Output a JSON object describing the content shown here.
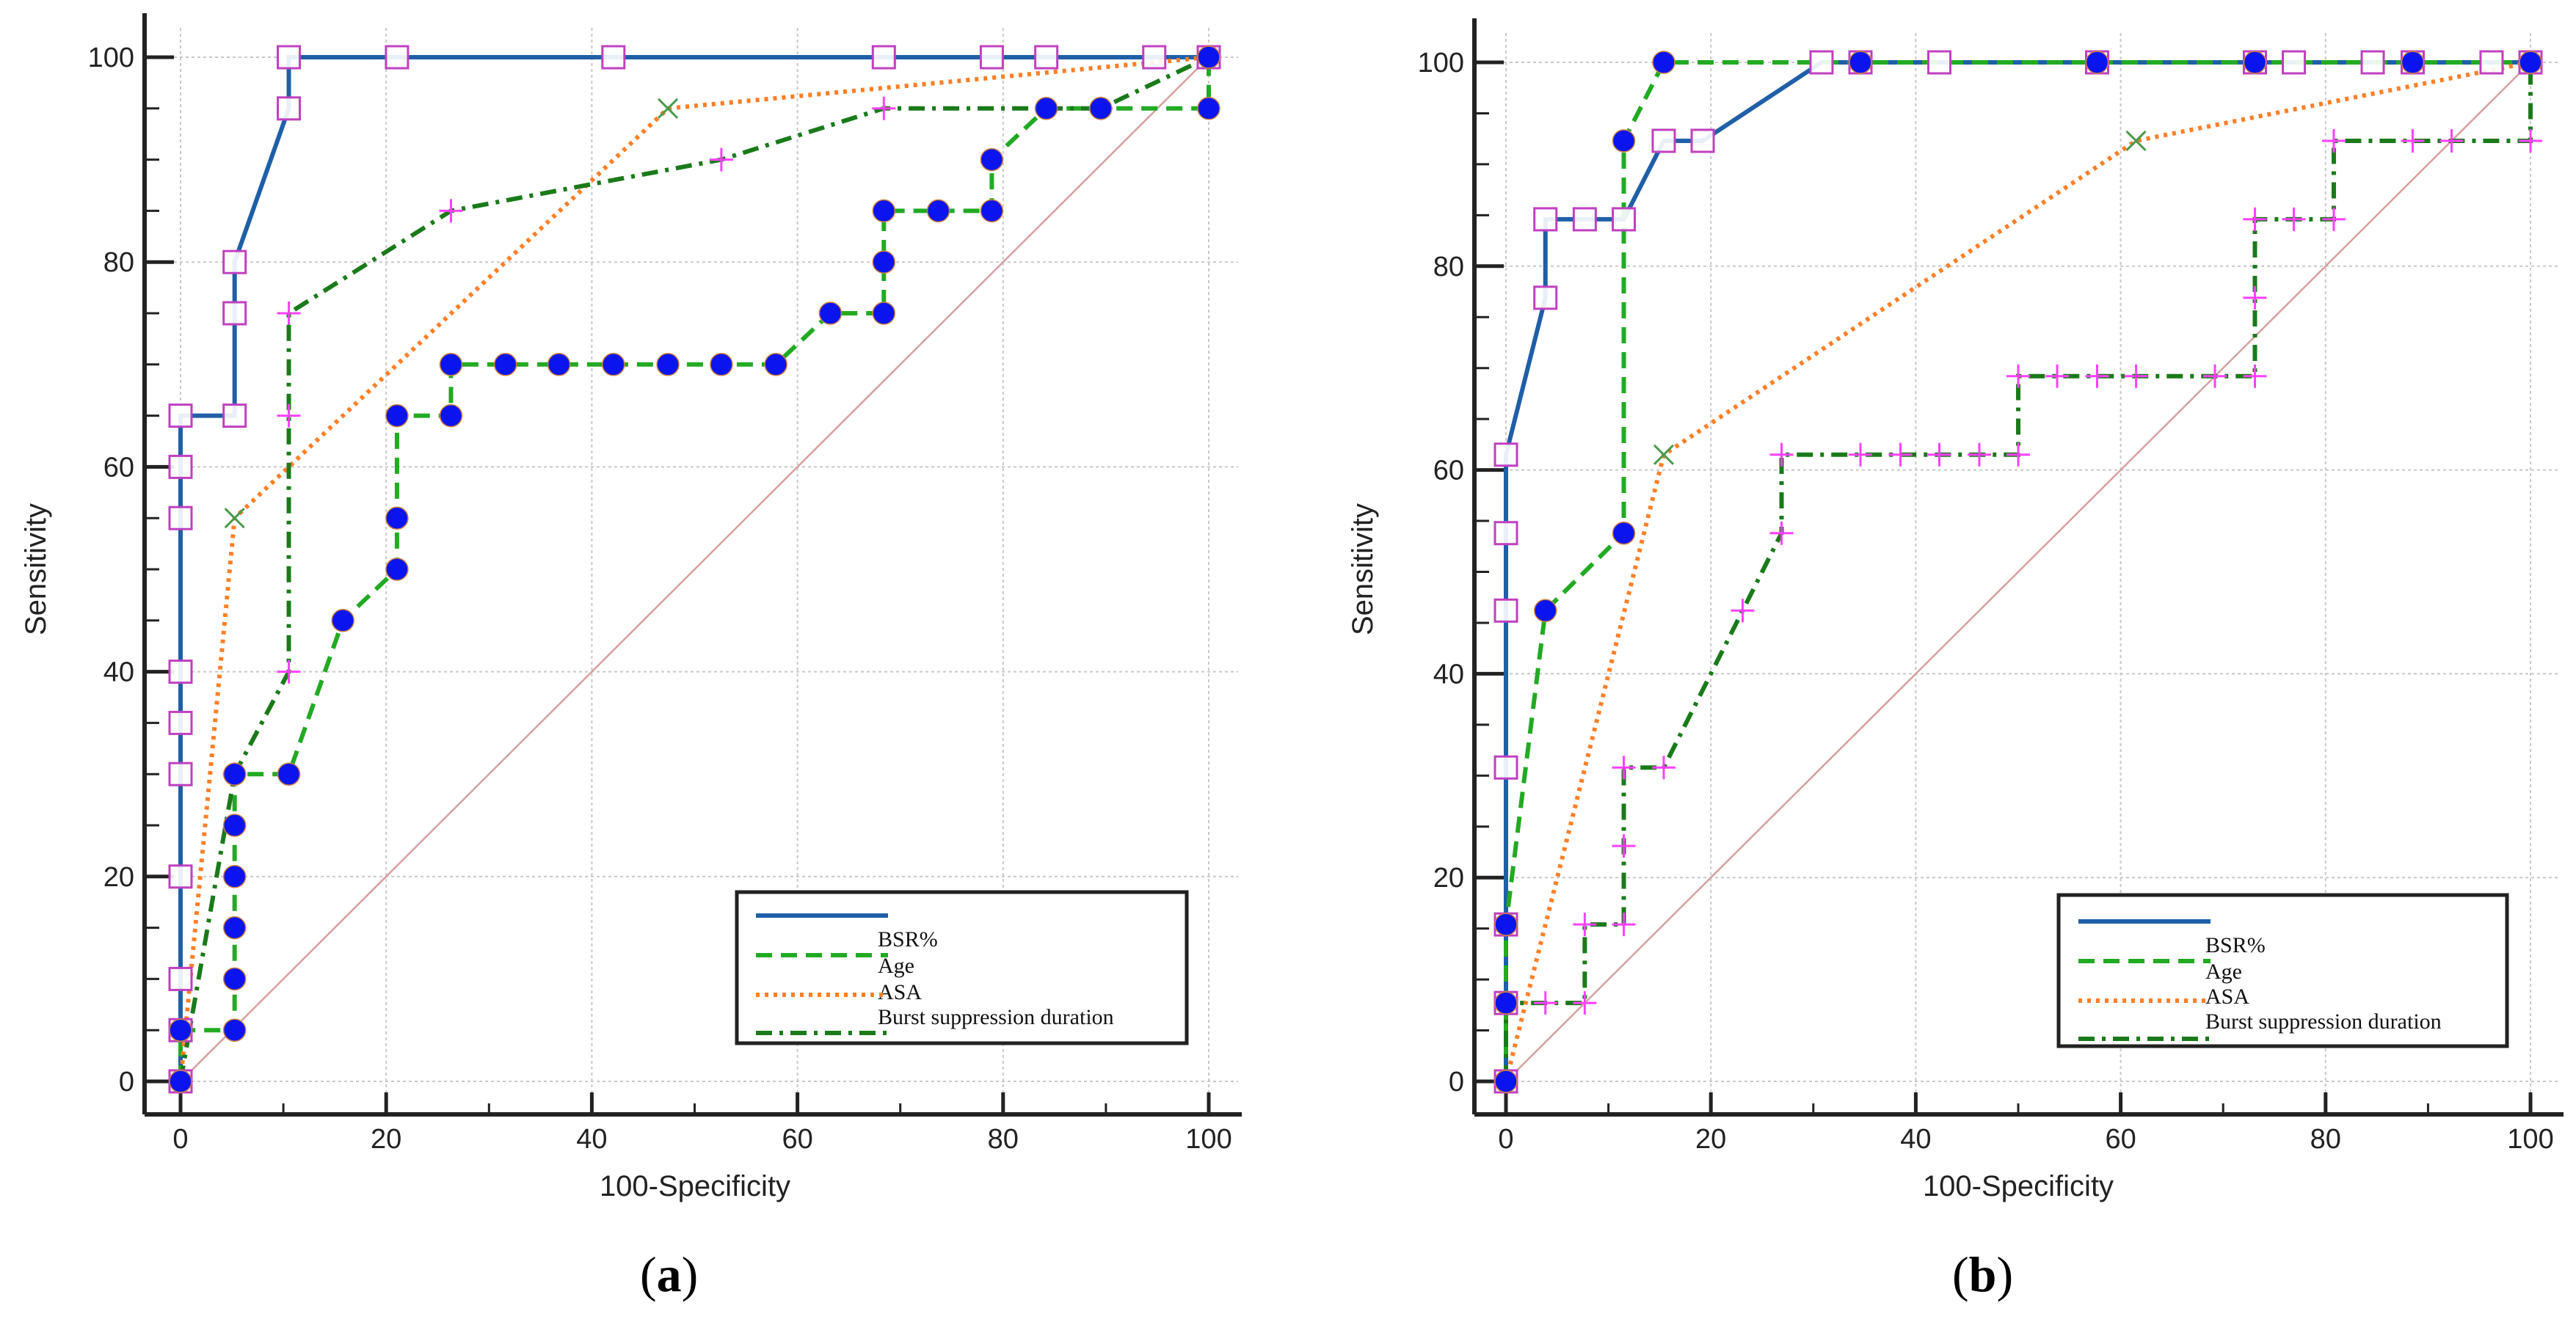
{
  "chart_data": [
    {
      "type": "line",
      "caption_open": "(",
      "caption_letter": "a",
      "caption_close": ")",
      "xlabel": "100-Specificity",
      "ylabel": "Sensitivity",
      "xlim": [
        0,
        100
      ],
      "ylim": [
        0,
        100
      ],
      "xticks": [
        0,
        20,
        40,
        60,
        80,
        100
      ],
      "yticks": [
        0,
        20,
        40,
        60,
        80,
        100
      ],
      "grid": true,
      "legend_position": "bottom-right",
      "legend": [
        "BSR%",
        "Age",
        "ASA",
        "Burst suppression duration"
      ],
      "series": [
        {
          "name": "BSR%",
          "color": "#1f5fa8",
          "marker": "square",
          "dash": "solid",
          "x": [
            0,
            0,
            0,
            0,
            0,
            0,
            0,
            0,
            0,
            0,
            5.26,
            5.26,
            5.26,
            10.53,
            10.53,
            21.05,
            42.1,
            68.4,
            78.9,
            84.2,
            94.7,
            100
          ],
          "y": [
            0,
            5,
            10,
            20,
            30,
            35,
            40,
            55,
            60,
            65,
            65,
            75,
            80,
            95,
            100,
            100,
            100,
            100,
            100,
            100,
            100,
            100
          ]
        },
        {
          "name": "Age",
          "color": "#22aa22",
          "marker": "circle",
          "dash": "dashed",
          "x": [
            0,
            0,
            5.26,
            5.26,
            5.26,
            5.26,
            5.26,
            5.26,
            10.53,
            15.79,
            21.05,
            21.05,
            21.05,
            26.3,
            26.3,
            31.6,
            36.8,
            42.1,
            47.4,
            52.6,
            57.9,
            63.2,
            68.4,
            68.4,
            68.4,
            73.7,
            78.9,
            78.9,
            84.2,
            89.5,
            100,
            100
          ],
          "y": [
            0,
            5,
            5,
            10,
            15,
            20,
            25,
            30,
            30,
            45,
            50,
            55,
            65,
            65,
            70,
            70,
            70,
            70,
            70,
            70,
            70,
            75,
            75,
            80,
            85,
            85,
            85,
            90,
            95,
            95,
            95,
            100
          ]
        },
        {
          "name": "ASA",
          "color": "#ff7f27",
          "marker": "x",
          "dash": "dotted",
          "x": [
            0,
            5.26,
            47.4,
            100
          ],
          "y": [
            0,
            55,
            95,
            100
          ]
        },
        {
          "name": "Burst suppression duration",
          "color": "#1a7a1a",
          "marker": "plus",
          "dash": "dashdot",
          "x": [
            0,
            5.26,
            10.53,
            10.53,
            10.53,
            26.3,
            52.6,
            68.4,
            89.5,
            100
          ],
          "y": [
            0,
            30,
            40,
            65,
            75,
            85,
            90,
            95,
            95,
            100
          ]
        }
      ],
      "reference_line": {
        "color": "#d4a0a0",
        "x": [
          0,
          100
        ],
        "y": [
          0,
          100
        ]
      }
    },
    {
      "type": "line",
      "caption_open": "(",
      "caption_letter": "b",
      "caption_close": ")",
      "xlabel": "100-Specificity",
      "ylabel": "Sensitivity",
      "xlim": [
        0,
        100
      ],
      "ylim": [
        0,
        100
      ],
      "xticks": [
        0,
        20,
        40,
        60,
        80,
        100
      ],
      "yticks": [
        0,
        20,
        40,
        60,
        80,
        100
      ],
      "grid": true,
      "legend_position": "bottom-right",
      "legend": [
        "BSR%",
        "Age",
        "ASA",
        "Burst suppression duration"
      ],
      "series": [
        {
          "name": "BSR%",
          "color": "#1f5fa8",
          "marker": "square",
          "dash": "solid",
          "x": [
            0,
            0,
            0,
            0,
            0,
            0,
            0,
            3.85,
            3.85,
            7.69,
            11.5,
            15.4,
            19.2,
            30.8,
            34.6,
            42.3,
            57.7,
            73.1,
            76.9,
            84.6,
            88.5,
            96.2,
            100
          ],
          "y": [
            0,
            7.69,
            15.4,
            30.8,
            46.2,
            53.8,
            61.5,
            76.9,
            84.6,
            84.6,
            84.6,
            92.3,
            92.3,
            100,
            100,
            100,
            100,
            100,
            100,
            100,
            100,
            100,
            100
          ]
        },
        {
          "name": "Age",
          "color": "#22aa22",
          "marker": "circle",
          "dash": "dashed",
          "x": [
            0,
            0,
            0,
            3.85,
            11.5,
            11.5,
            15.4,
            34.6,
            57.7,
            73.1,
            88.5,
            100
          ],
          "y": [
            0,
            7.69,
            15.4,
            46.2,
            53.8,
            92.3,
            100,
            100,
            100,
            100,
            100,
            100
          ]
        },
        {
          "name": "ASA",
          "color": "#ff7f27",
          "marker": "x",
          "dash": "dotted",
          "x": [
            0,
            15.4,
            61.5,
            100
          ],
          "y": [
            0,
            61.5,
            92.3,
            100
          ]
        },
        {
          "name": "Burst suppression duration",
          "color": "#1a7a1a",
          "marker": "plus",
          "dash": "dashdot",
          "x": [
            0,
            0,
            3.85,
            7.69,
            7.69,
            11.5,
            11.5,
            11.5,
            15.4,
            23.1,
            26.9,
            26.9,
            34.6,
            38.5,
            42.3,
            46.2,
            50,
            50,
            53.8,
            57.7,
            61.5,
            69.2,
            73.1,
            73.1,
            73.1,
            76.9,
            80.8,
            80.8,
            88.5,
            92.3,
            100,
            100
          ],
          "y": [
            0,
            7.69,
            7.69,
            7.69,
            15.4,
            15.4,
            23.1,
            30.8,
            30.8,
            46.2,
            53.8,
            61.5,
            61.5,
            61.5,
            61.5,
            61.5,
            61.5,
            69.2,
            69.2,
            69.2,
            69.2,
            69.2,
            69.2,
            76.9,
            84.6,
            84.6,
            84.6,
            92.3,
            92.3,
            92.3,
            92.3,
            100
          ]
        }
      ],
      "reference_line": {
        "color": "#d4a0a0",
        "x": [
          0,
          100
        ],
        "y": [
          0,
          100
        ]
      }
    }
  ]
}
